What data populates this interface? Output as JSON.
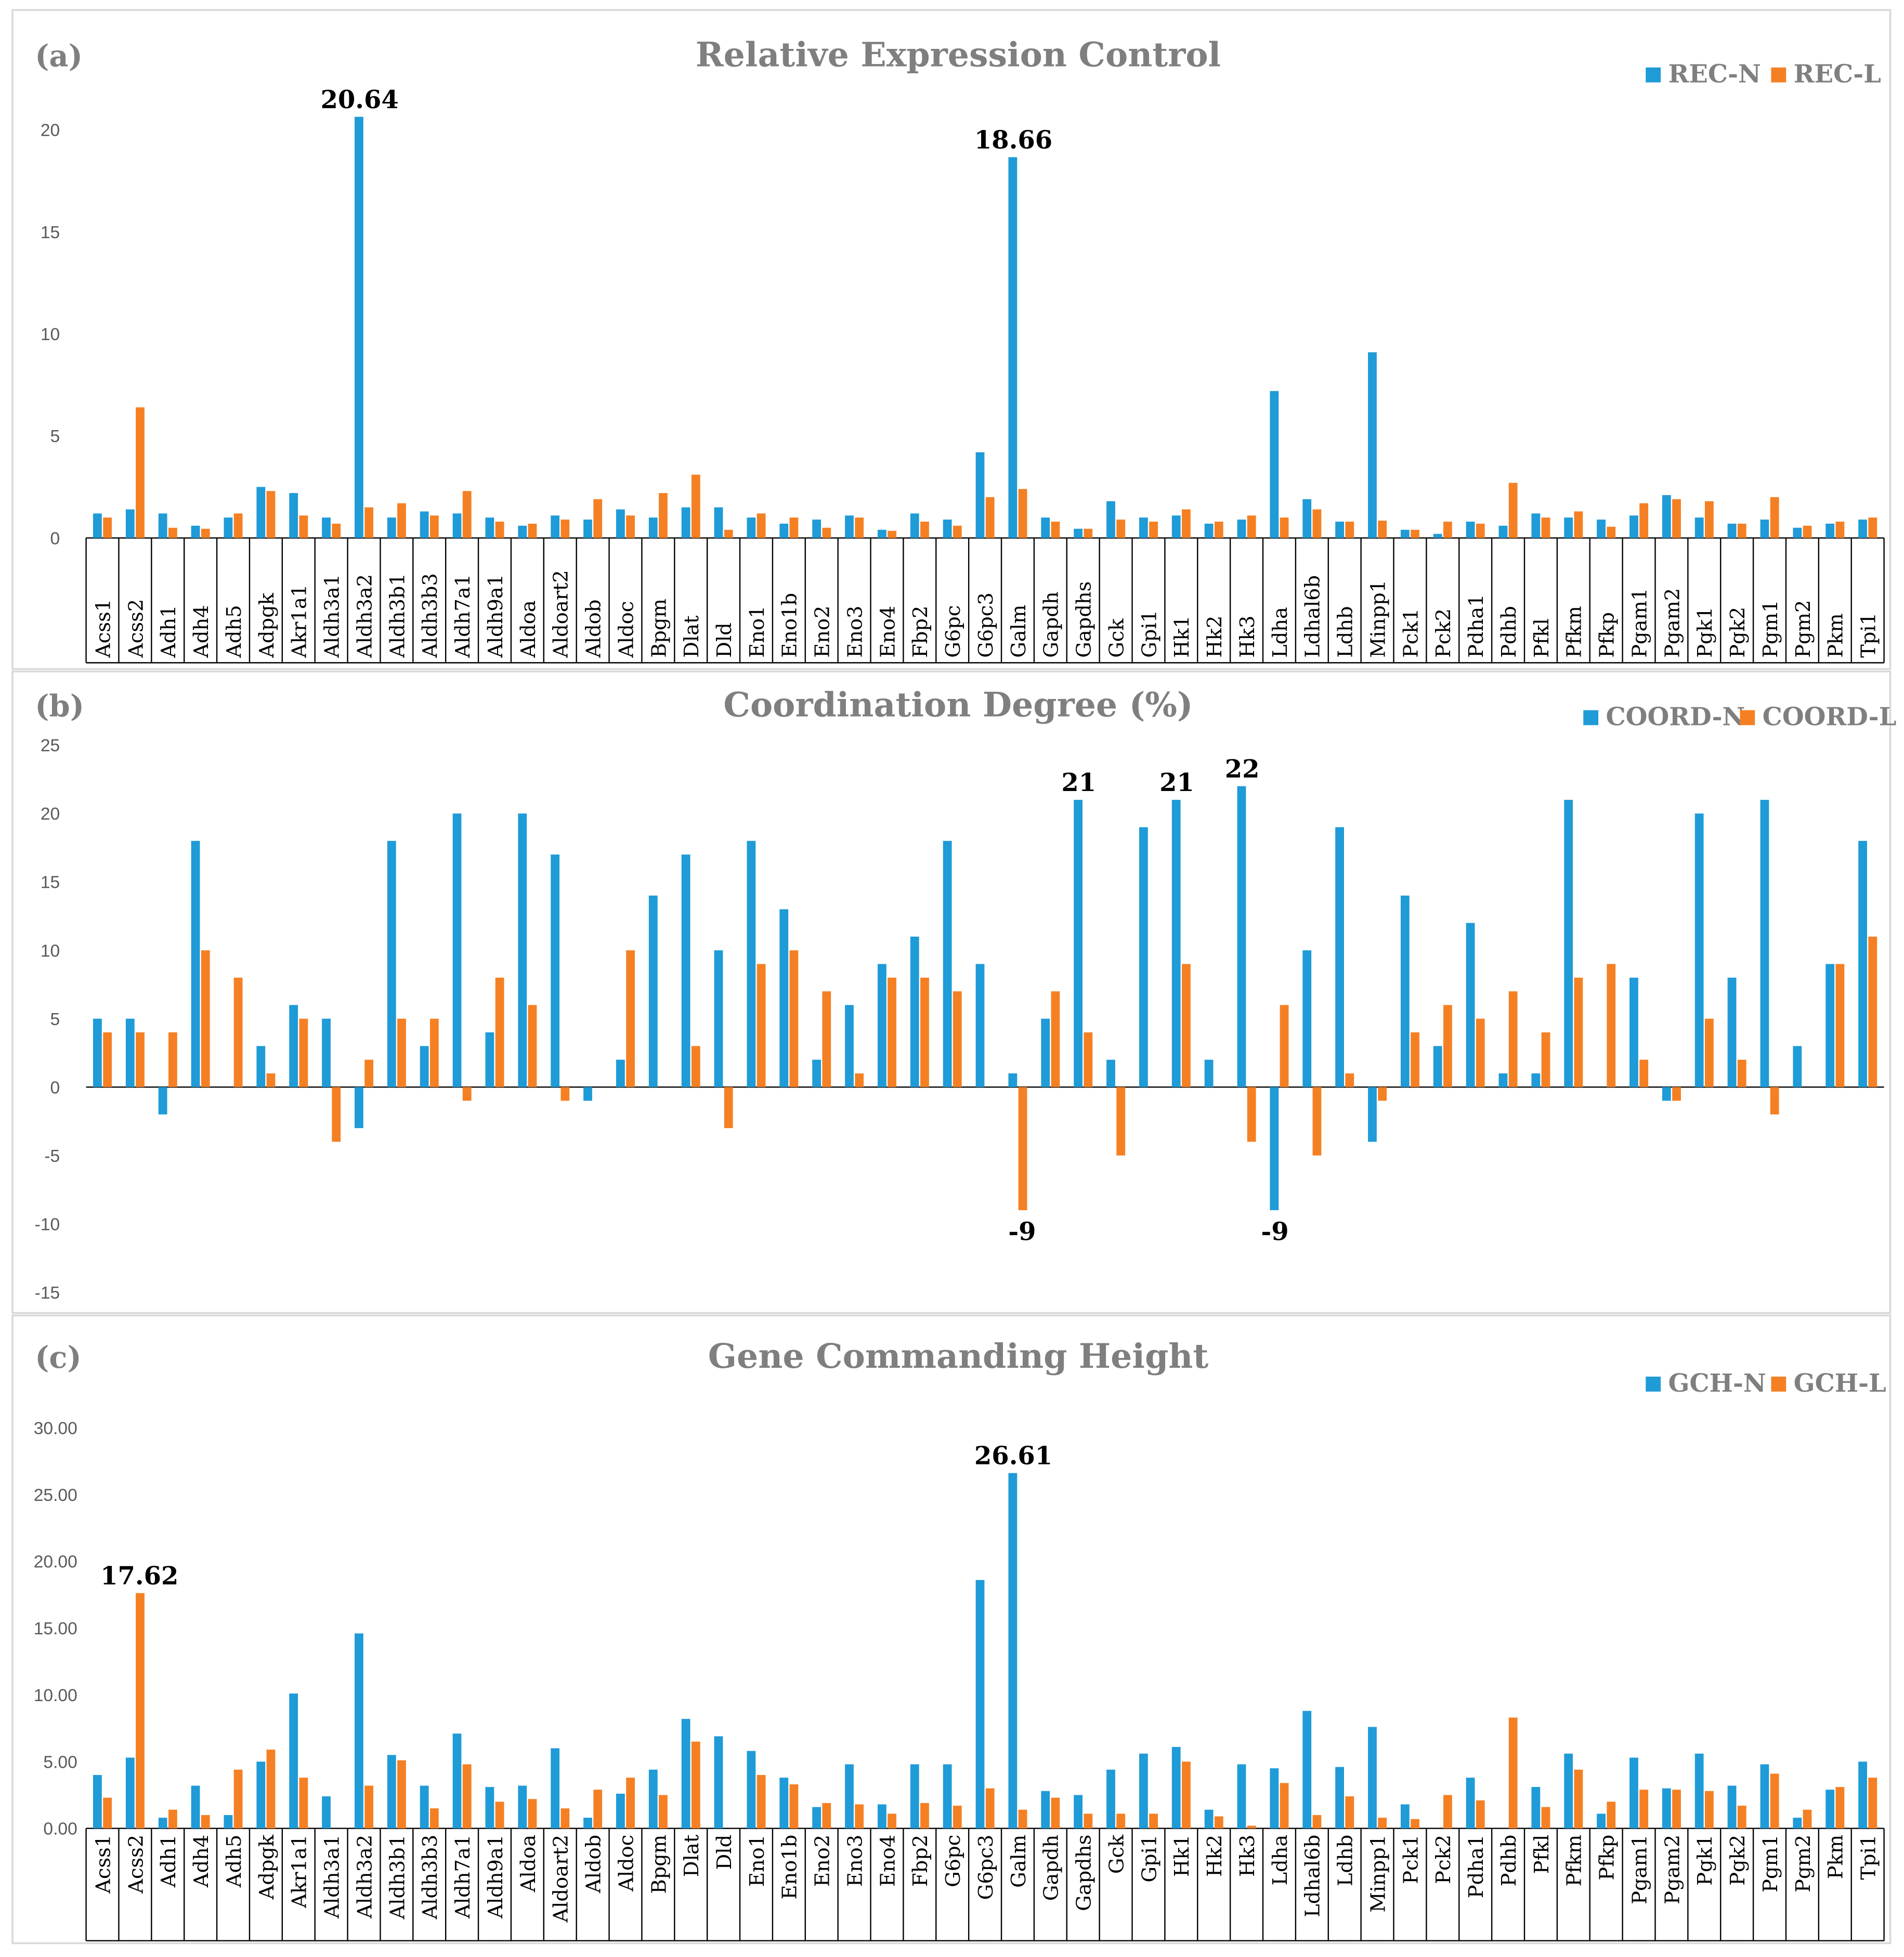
{
  "chart_data": [
    {
      "type": "bar",
      "panel_label": "(a)",
      "title": "Relative Expression Control",
      "categories": [
        "Acss1",
        "Acss2",
        "Adh1",
        "Adh4",
        "Adh5",
        "Adpgk",
        "Akr1a1",
        "Aldh3a1",
        "Aldh3a2",
        "Aldh3b1",
        "Aldh3b3",
        "Aldh7a1",
        "Aldh9a1",
        "Aldoa",
        "Aldoart2",
        "Aldob",
        "Aldoc",
        "Bpgm",
        "Dlat",
        "Dld",
        "Eno1",
        "Eno1b",
        "Eno2",
        "Eno3",
        "Eno4",
        "Fbp2",
        "G6pc",
        "G6pc3",
        "Galm",
        "Gapdh",
        "Gapdhs",
        "Gck",
        "Gpi1",
        "Hk1",
        "Hk2",
        "Hk3",
        "Ldha",
        "Ldhal6b",
        "Ldhb",
        "Minpp1",
        "Pck1",
        "Pck2",
        "Pdha1",
        "Pdhb",
        "Pfkl",
        "Pfkm",
        "Pfkp",
        "Pgam1",
        "Pgam2",
        "Pgk1",
        "Pgk2",
        "Pgm1",
        "Pgm2",
        "Pkm",
        "Tpi1"
      ],
      "series": [
        {
          "name": "REC-N",
          "color": "#1f9bd7",
          "values": [
            1.2,
            1.4,
            1.2,
            0.6,
            1.0,
            2.5,
            2.2,
            1.0,
            20.64,
            1.0,
            1.3,
            1.2,
            1.0,
            0.6,
            1.1,
            0.9,
            1.4,
            1.0,
            1.5,
            1.5,
            1.0,
            0.7,
            0.9,
            1.1,
            0.4,
            1.2,
            0.9,
            4.2,
            18.66,
            1.0,
            0.45,
            1.8,
            1.0,
            1.1,
            0.7,
            0.9,
            7.2,
            1.9,
            0.8,
            9.1,
            0.4,
            0.2,
            0.8,
            0.6,
            1.2,
            1.0,
            0.9,
            1.1,
            2.1,
            1.0,
            0.7,
            0.9,
            0.5,
            0.7,
            0.9
          ]
        },
        {
          "name": "REC-L",
          "color": "#f58023",
          "values": [
            1.0,
            6.4,
            0.5,
            0.45,
            1.2,
            2.3,
            1.1,
            0.7,
            1.5,
            1.7,
            1.1,
            2.3,
            0.8,
            0.7,
            0.9,
            1.9,
            1.1,
            2.2,
            3.1,
            0.4,
            1.2,
            1.0,
            0.5,
            1.0,
            0.35,
            0.8,
            0.6,
            2.0,
            2.4,
            0.8,
            0.45,
            0.9,
            0.8,
            1.4,
            0.8,
            1.1,
            1.0,
            1.4,
            0.8,
            0.85,
            0.4,
            0.8,
            0.7,
            2.7,
            1.0,
            1.3,
            0.55,
            1.7,
            1.9,
            1.8,
            0.7,
            2.0,
            0.6,
            0.8,
            1.0
          ]
        }
      ],
      "yticks": [
        "0",
        "5",
        "10",
        "15",
        "20"
      ],
      "ylim": [
        0,
        22
      ],
      "annotations": [
        {
          "category": "Aldh3a2",
          "series": "REC-N",
          "text": "20.64"
        },
        {
          "category": "Galm",
          "series": "REC-N",
          "text": "18.66"
        }
      ],
      "legend": "top-right",
      "grid": false
    },
    {
      "type": "bar",
      "panel_label": "(b)",
      "title": "Coordination Degree (%)",
      "categories": [
        "Acss1",
        "Acss2",
        "Adh1",
        "Adh4",
        "Adh5",
        "Adpgk",
        "Akr1a1",
        "Aldh3a1",
        "Aldh3a2",
        "Aldh3b1",
        "Aldh3b3",
        "Aldh7a1",
        "Aldh9a1",
        "Aldoa",
        "Aldoart2",
        "Aldob",
        "Aldoc",
        "Bpgm",
        "Dlat",
        "Dld",
        "Eno1",
        "Eno1b",
        "Eno2",
        "Eno3",
        "Eno4",
        "Fbp2",
        "G6pc",
        "G6pc3",
        "Galm",
        "Gapdh",
        "Gapdhs",
        "Gck",
        "Gpi1",
        "Hk1",
        "Hk2",
        "Hk3",
        "Ldha",
        "Ldhal6b",
        "Ldhb",
        "Minpp1",
        "Pck1",
        "Pck2",
        "Pdha1",
        "Pdhb",
        "Pfkl",
        "Pfkm",
        "Pfkp",
        "Pgam1",
        "Pgam2",
        "Pgk1",
        "Pgk2",
        "Pgm1",
        "Pgm2",
        "Pkm",
        "Tpi1"
      ],
      "series": [
        {
          "name": "COORD-N",
          "color": "#1f9bd7",
          "values": [
            5,
            5,
            -2,
            18,
            0,
            3,
            6,
            5,
            -3,
            18,
            3,
            20,
            4,
            20,
            17,
            -1,
            2,
            14,
            17,
            10,
            18,
            13,
            2,
            6,
            9,
            11,
            18,
            9,
            1,
            5,
            21,
            2,
            19,
            21,
            2,
            22,
            -9,
            10,
            19,
            -4,
            14,
            3,
            12,
            1,
            1,
            21,
            0,
            8,
            -1,
            20,
            8,
            21,
            3,
            9,
            18
          ]
        },
        {
          "name": "COORD-L",
          "color": "#f58023",
          "values": [
            4,
            4,
            4,
            10,
            8,
            1,
            5,
            -4,
            2,
            5,
            5,
            -1,
            8,
            6,
            -1,
            0,
            10,
            0,
            3,
            -3,
            9,
            10,
            7,
            1,
            8,
            8,
            7,
            0,
            -9,
            7,
            4,
            -5,
            0,
            9,
            0,
            -4,
            6,
            -5,
            1,
            -1,
            4,
            6,
            5,
            7,
            4,
            8,
            9,
            2,
            -1,
            5,
            2,
            -2,
            0,
            9,
            11
          ]
        }
      ],
      "yticks": [
        "-15",
        "-10",
        "-5",
        "0",
        "5",
        "10",
        "15",
        "20",
        "25"
      ],
      "ylim": [
        -15,
        25
      ],
      "annotations": [
        {
          "category": "Gapdhs",
          "series": "COORD-N",
          "text": "21"
        },
        {
          "category": "Hk1",
          "series": "COORD-N",
          "text": "21"
        },
        {
          "category": "Hk3",
          "series": "COORD-N",
          "text": "22"
        },
        {
          "category": "Galm",
          "series": "COORD-L",
          "text": "-9"
        },
        {
          "category": "Ldha",
          "series": "COORD-N",
          "text": "-9"
        }
      ],
      "legend": "top-right",
      "grid": false
    },
    {
      "type": "bar",
      "panel_label": "(c)",
      "title": "Gene Commanding Height",
      "categories": [
        "Acss1",
        "Acss2",
        "Adh1",
        "Adh4",
        "Adh5",
        "Adpgk",
        "Akr1a1",
        "Aldh3a1",
        "Aldh3a2",
        "Aldh3b1",
        "Aldh3b3",
        "Aldh7a1",
        "Aldh9a1",
        "Aldoa",
        "Aldoart2",
        "Aldob",
        "Aldoc",
        "Bpgm",
        "Dlat",
        "Dld",
        "Eno1",
        "Eno1b",
        "Eno2",
        "Eno3",
        "Eno4",
        "Fbp2",
        "G6pc",
        "G6pc3",
        "Galm",
        "Gapdh",
        "Gapdhs",
        "Gck",
        "Gpi1",
        "Hk1",
        "Hk2",
        "Hk3",
        "Ldha",
        "Ldhal6b",
        "Ldhb",
        "Minpp1",
        "Pck1",
        "Pck2",
        "Pdha1",
        "Pdhb",
        "Pfkl",
        "Pfkm",
        "Pfkp",
        "Pgam1",
        "Pgam2",
        "Pgk1",
        "Pgk2",
        "Pgm1",
        "Pgm2",
        "Pkm",
        "Tpi1"
      ],
      "series": [
        {
          "name": "GCH-N",
          "color": "#1f9bd7",
          "values": [
            4.0,
            5.3,
            0.8,
            3.2,
            1.0,
            5.0,
            10.1,
            2.4,
            14.6,
            5.5,
            3.2,
            7.1,
            3.1,
            3.2,
            6.0,
            0.8,
            2.6,
            4.4,
            8.2,
            6.9,
            5.8,
            3.8,
            1.6,
            4.8,
            1.8,
            4.8,
            4.8,
            18.6,
            26.61,
            2.8,
            2.5,
            4.4,
            5.6,
            6.1,
            1.4,
            4.8,
            4.5,
            8.8,
            4.6,
            7.6,
            1.8,
            0.0,
            3.8,
            0.0,
            3.1,
            5.6,
            1.1,
            5.3,
            3.0,
            5.6,
            3.2,
            4.8,
            0.8,
            2.9,
            5.0
          ]
        },
        {
          "name": "GCH-L",
          "color": "#f58023",
          "values": [
            2.3,
            17.62,
            1.4,
            1.0,
            4.4,
            5.9,
            3.8,
            0.0,
            3.2,
            5.1,
            1.5,
            4.8,
            2.0,
            2.2,
            1.5,
            2.9,
            3.8,
            2.5,
            6.5,
            0.0,
            4.0,
            3.3,
            1.9,
            1.8,
            1.1,
            1.9,
            1.7,
            3.0,
            1.4,
            2.3,
            1.1,
            1.1,
            1.1,
            5.0,
            0.9,
            0.2,
            3.4,
            1.0,
            2.4,
            0.8,
            0.7,
            2.5,
            2.1,
            8.3,
            1.6,
            4.4,
            2.0,
            2.9,
            2.9,
            2.8,
            1.7,
            4.1,
            1.4,
            3.1,
            3.8
          ]
        }
      ],
      "yticks": [
        "0.00",
        "5.00",
        "10.00",
        "15.00",
        "20.00",
        "25.00",
        "30.00"
      ],
      "ylim": [
        0,
        30
      ],
      "annotations": [
        {
          "category": "Acss2",
          "series": "GCH-L",
          "text": "17.62"
        },
        {
          "category": "Galm",
          "series": "GCH-N",
          "text": "26.61"
        }
      ],
      "legend": "top-right",
      "grid": false
    }
  ]
}
